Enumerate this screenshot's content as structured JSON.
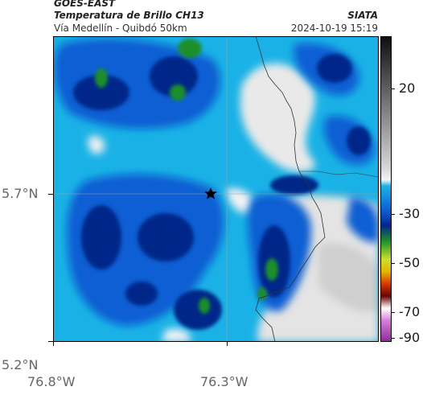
{
  "header": {
    "source": "GOES-EAST",
    "product": "Temperatura de Brillo CH13",
    "region": "Vía Medellín - Quibdó 50km",
    "organization": "SIATA",
    "datetime": "2024-10-19 15:19"
  },
  "map": {
    "lat_ticks": [
      "5.7°N",
      "5.2°N"
    ],
    "lon_ticks": [
      "76.8°W",
      "76.3°W"
    ],
    "grid": true,
    "marker": "star"
  },
  "colorbar": {
    "ticks": [
      "20",
      "-30",
      "-50",
      "-70",
      "-90"
    ],
    "colors": [
      "#1a1a1a",
      "#555555",
      "#9a9a9a",
      "#d6d6d6",
      "#f4f4f4",
      "#1ab2e6",
      "#0c5fd3",
      "#06268a",
      "#1b8f2a",
      "#c8e02c",
      "#e8b400",
      "#d23a00",
      "#6b0000",
      "#ffffff",
      "#d67fd6",
      "#8b2a9c"
    ]
  }
}
